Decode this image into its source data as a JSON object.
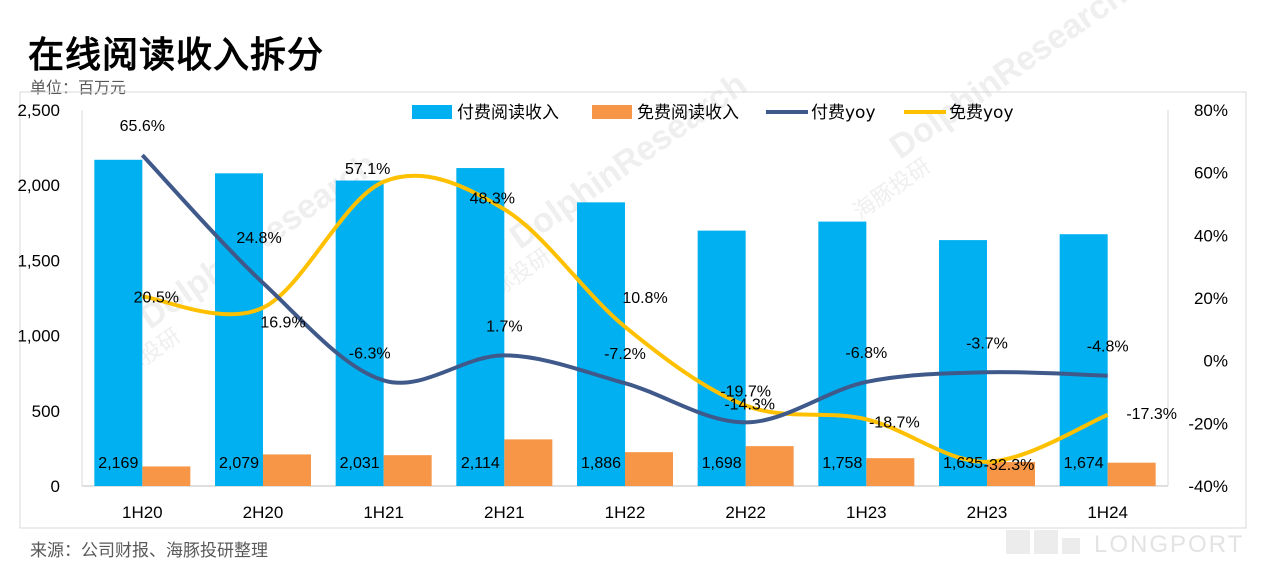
{
  "header": {
    "title": "在线阅读收入拆分",
    "unit": "单位：百万元"
  },
  "footer": {
    "source": "来源：公司财报、海豚投研整理",
    "watermark_cn": "海豚投研",
    "watermark_en": "DolphinResearch",
    "logo": "LONGPORT"
  },
  "colors": {
    "paid_bar": "#00b0f0",
    "free_bar": "#f79646",
    "paid_yoy": "#3f5a8a",
    "free_yoy": "#ffc000"
  },
  "chart_data": {
    "type": "bar",
    "title": "在线阅读收入拆分",
    "categories": [
      "1H20",
      "2H20",
      "1H21",
      "2H21",
      "1H22",
      "2H22",
      "1H23",
      "2H23",
      "1H24"
    ],
    "series": [
      {
        "name": "付费阅读收入",
        "kind": "bar",
        "axis": "left",
        "values": [
          2169,
          2079,
          2031,
          2114,
          1886,
          1698,
          1758,
          1635,
          1674
        ],
        "labels": [
          "2,169",
          "2,079",
          "2,031",
          "2,114",
          "1,886",
          "1,698",
          "1,758",
          "1,635",
          "1,674"
        ]
      },
      {
        "name": "免费阅读收入",
        "kind": "bar",
        "axis": "left",
        "values": [
          130,
          210,
          205,
          310,
          225,
          265,
          185,
          160,
          155
        ]
      },
      {
        "name": "付费yoy",
        "kind": "line",
        "axis": "right",
        "values": [
          65.6,
          24.8,
          -6.3,
          1.7,
          -7.2,
          -19.7,
          -6.8,
          -3.7,
          -4.8
        ],
        "labels": [
          "65.6%",
          "24.8%",
          "-6.3%",
          "1.7%",
          "-7.2%",
          "-19.7%",
          "-6.8%",
          "-3.7%",
          "-4.8%"
        ]
      },
      {
        "name": "免费yoy",
        "kind": "line",
        "axis": "right",
        "values": [
          20.5,
          16.9,
          57.1,
          48.3,
          10.8,
          -14.3,
          -18.7,
          -32.3,
          -17.3
        ],
        "labels": [
          "20.5%",
          "16.9%",
          "57.1%",
          "48.3%",
          "10.8%",
          "-14.3%",
          "-18.7%",
          "-32.3%",
          "-17.3%"
        ]
      }
    ],
    "y_left": {
      "ylim": [
        0,
        2500
      ],
      "ticks": [
        "0",
        "500",
        "1,000",
        "1,500",
        "2,000",
        "2,500"
      ]
    },
    "y_right": {
      "ylim": [
        -40,
        80
      ],
      "ticks": [
        "-40%",
        "-20%",
        "0%",
        "20%",
        "40%",
        "60%",
        "80%"
      ]
    },
    "legend": [
      "付费阅读收入",
      "免费阅读收入",
      "付费yoy",
      "免费yoy"
    ],
    "legend_position": "top",
    "grid": false
  }
}
